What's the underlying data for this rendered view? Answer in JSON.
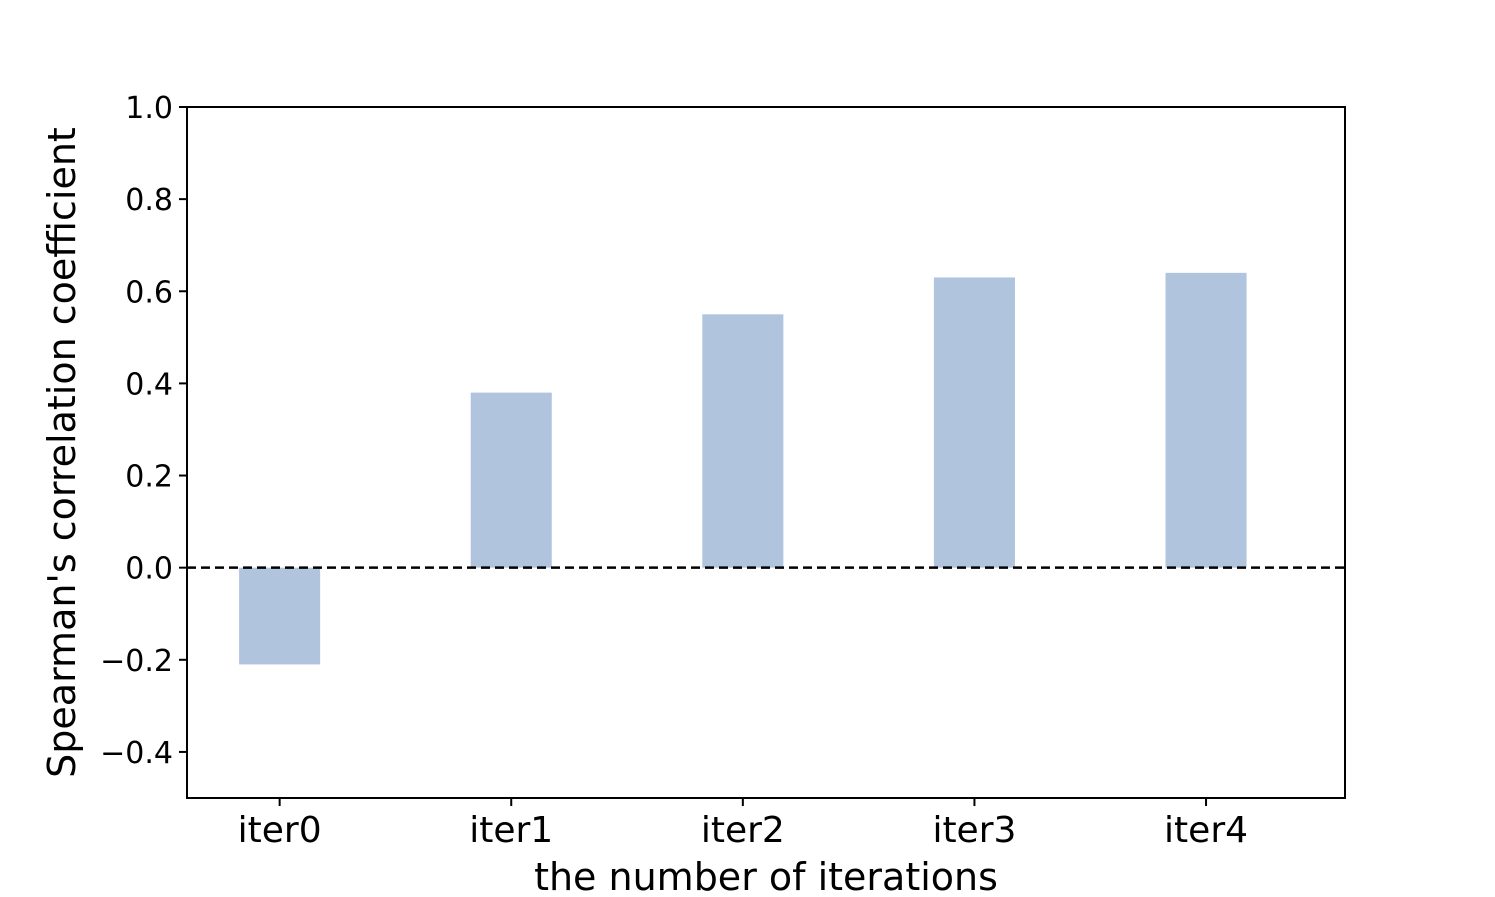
{
  "chart_data": {
    "type": "bar",
    "categories": [
      "iter0",
      "iter1",
      "iter2",
      "iter3",
      "iter4"
    ],
    "values": [
      -0.21,
      0.38,
      0.55,
      0.63,
      0.64
    ],
    "xlabel": "the number of iterations",
    "ylabel": "Spearman's correlation coefficient",
    "ylim": [
      -0.5,
      1.0
    ],
    "yticks": [
      -0.4,
      -0.2,
      0.0,
      0.2,
      0.4,
      0.6,
      0.8,
      1.0
    ],
    "ytick_labels": [
      "−0.4",
      "−0.2",
      "0.0",
      "0.2",
      "0.4",
      "0.6",
      "0.8",
      "1.0"
    ],
    "reference_line": {
      "y": 0.0,
      "style": "dashed",
      "color": "#000000"
    },
    "bar_color": "#b0c4de",
    "grid": false,
    "legend": "none"
  }
}
